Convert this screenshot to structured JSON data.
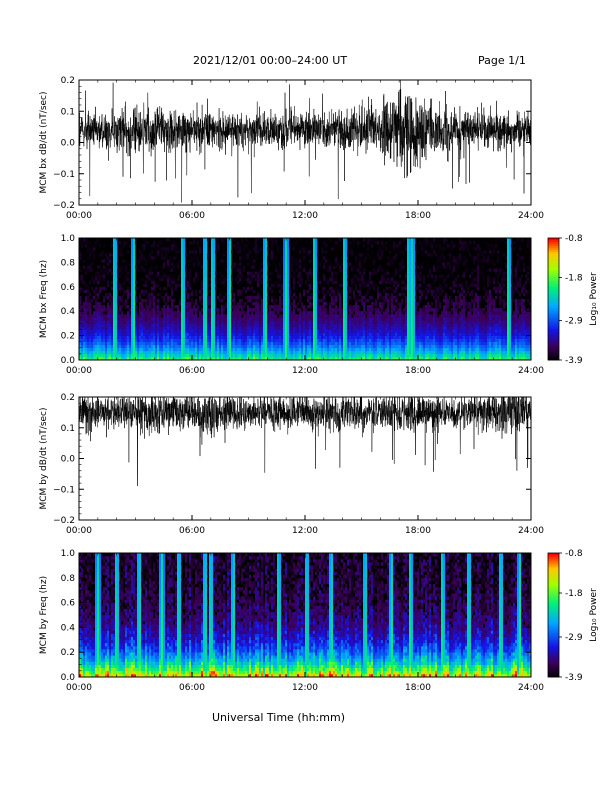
{
  "header": {
    "title": "2021/12/01  00:00–24:00 UT",
    "page": "Page 1/1"
  },
  "xlabel": "Universal Time (hh:mm)",
  "chart_data": [
    {
      "type": "line",
      "panel": "bx-derivative",
      "ylabel": "MCM bx dB/dt (nT/sec)",
      "xticks": [
        "00:00",
        "06:00",
        "12:00",
        "18:00",
        "24:00"
      ],
      "xlim": [
        0,
        24
      ],
      "ylim": [
        -0.2,
        0.2
      ],
      "yticks": [
        "0.2",
        "0.1",
        "0.0",
        "−0.1",
        "−0.2"
      ],
      "ytick_values": [
        0.2,
        0.1,
        0.0,
        -0.1,
        -0.2
      ],
      "series_color": "#000000",
      "baseline": 0.04,
      "envelope": [
        [
          0,
          0.06
        ],
        [
          1,
          0.05
        ],
        [
          2,
          0.06
        ],
        [
          3,
          0.07
        ],
        [
          4,
          0.07
        ],
        [
          5,
          0.06
        ],
        [
          6,
          0.06
        ],
        [
          7,
          0.08
        ],
        [
          8,
          0.05
        ],
        [
          9,
          0.05
        ],
        [
          10,
          0.05
        ],
        [
          11,
          0.05
        ],
        [
          12,
          0.05
        ],
        [
          13,
          0.05
        ],
        [
          14,
          0.06
        ],
        [
          15,
          0.07
        ],
        [
          16,
          0.08
        ],
        [
          17,
          0.14
        ],
        [
          18,
          0.1
        ],
        [
          19,
          0.07
        ],
        [
          20,
          0.06
        ],
        [
          21,
          0.05
        ],
        [
          22,
          0.06
        ],
        [
          23,
          0.05
        ],
        [
          24,
          0.05
        ]
      ]
    },
    {
      "type": "heatmap",
      "panel": "bx-spectrogram",
      "ylabel": "MCM bx Freq (hz)",
      "xticks": [
        "00:00",
        "06:00",
        "12:00",
        "18:00",
        "24:00"
      ],
      "xlim": [
        0,
        24
      ],
      "ylim": [
        0,
        1.0
      ],
      "yticks": [
        "1.0",
        "0.8",
        "0.6",
        "0.4",
        "0.2",
        "0.0"
      ],
      "ytick_values": [
        1.0,
        0.8,
        0.6,
        0.4,
        0.2,
        0.0
      ],
      "colorbar": {
        "label": "Log₁₀ Power",
        "ticks": [
          "-0.8",
          "-1.8",
          "-2.9",
          "-3.9"
        ],
        "tick_values": [
          -0.8,
          -1.8,
          -2.9,
          -3.9
        ],
        "range": [
          -3.9,
          -0.8
        ]
      },
      "activity": 0.35,
      "bright_bands_hours": [
        1.9,
        2.9,
        5.5,
        6.7,
        7.1,
        8.0,
        9.9,
        11.0,
        12.5,
        14.1,
        17.5,
        17.7,
        22.8
      ]
    },
    {
      "type": "line",
      "panel": "by-derivative",
      "ylabel": "MCM by dB/dt (nT/sec)",
      "xticks": [
        "00:00",
        "06:00",
        "12:00",
        "18:00",
        "24:00"
      ],
      "xlim": [
        0,
        24
      ],
      "ylim": [
        -0.2,
        0.2
      ],
      "yticks": [
        "0.2",
        "0.1",
        "0.0",
        "−0.1",
        "−0.2"
      ],
      "ytick_values": [
        0.2,
        0.1,
        0.0,
        -0.1,
        -0.2
      ],
      "series_color": "#000000",
      "baseline": 0.15,
      "envelope": [
        [
          0,
          0.06
        ],
        [
          1,
          0.05
        ],
        [
          2,
          0.05
        ],
        [
          3,
          0.06
        ],
        [
          4,
          0.06
        ],
        [
          5,
          0.05
        ],
        [
          6,
          0.06
        ],
        [
          7,
          0.07
        ],
        [
          8,
          0.05
        ],
        [
          9,
          0.05
        ],
        [
          10,
          0.05
        ],
        [
          11,
          0.05
        ],
        [
          12,
          0.05
        ],
        [
          13,
          0.05
        ],
        [
          14,
          0.05
        ],
        [
          15,
          0.05
        ],
        [
          16,
          0.05
        ],
        [
          17,
          0.06
        ],
        [
          18,
          0.05
        ],
        [
          19,
          0.05
        ],
        [
          20,
          0.05
        ],
        [
          21,
          0.05
        ],
        [
          22,
          0.06
        ],
        [
          23,
          0.07
        ],
        [
          24,
          0.05
        ]
      ]
    },
    {
      "type": "heatmap",
      "panel": "by-spectrogram",
      "ylabel": "MCM by Freq (hz)",
      "xticks": [
        "00:00",
        "06:00",
        "12:00",
        "18:00",
        "24:00"
      ],
      "xlim": [
        0,
        24
      ],
      "ylim": [
        0,
        1.0
      ],
      "yticks": [
        "1.0",
        "0.8",
        "0.6",
        "0.4",
        "0.2",
        "0.0"
      ],
      "ytick_values": [
        1.0,
        0.8,
        0.6,
        0.4,
        0.2,
        0.0
      ],
      "colorbar": {
        "label": "Log₁₀ Power",
        "ticks": [
          "-0.8",
          "-1.8",
          "-2.9",
          "-3.9"
        ],
        "tick_values": [
          -0.8,
          -1.8,
          -2.9,
          -3.9
        ],
        "range": [
          -3.9,
          -0.8
        ]
      },
      "activity": 0.65,
      "bright_bands_hours": [
        1.0,
        2.0,
        3.2,
        4.4,
        5.3,
        6.7,
        7.0,
        8.2,
        10.6,
        12.1,
        13.4,
        15.2,
        16.6,
        17.6,
        19.3,
        20.7,
        22.4,
        23.4
      ]
    }
  ]
}
